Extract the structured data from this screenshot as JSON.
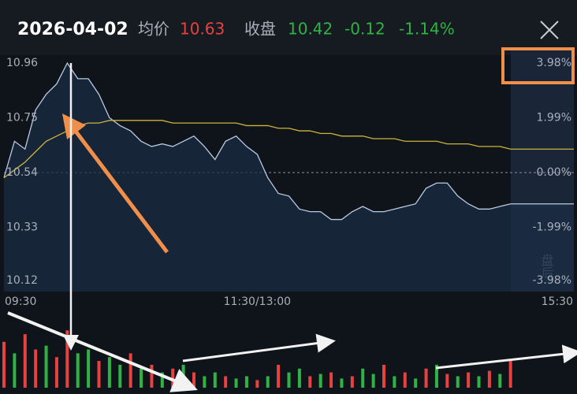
{
  "header": {
    "date": "2026-04-02",
    "avg_label": "均价",
    "avg_value": "10.63",
    "close_label": "收盘",
    "close_value": "10.42",
    "change": "-0.12",
    "change_pct": "-1.14%",
    "after_hours": "盘后"
  },
  "chart_data": [
    {
      "type": "line",
      "x": [
        0,
        5,
        10,
        15,
        20,
        25,
        30,
        35,
        40,
        45,
        50,
        55,
        60,
        65,
        70,
        75,
        80,
        85,
        90,
        95,
        100,
        105,
        110,
        115,
        120,
        125,
        130,
        135,
        140,
        145,
        150,
        155,
        160,
        165,
        170,
        175,
        180,
        185,
        190,
        195,
        200,
        205,
        210,
        215,
        220,
        225,
        230,
        235,
        240,
        270
      ],
      "xlim": [
        0,
        270
      ],
      "xticks": [
        {
          "value": 0,
          "label": "09:30"
        },
        {
          "value": 120,
          "label": "11:30/13:00"
        },
        {
          "value": 270,
          "label": "15:30"
        }
      ],
      "ylim": [
        10.12,
        10.96
      ],
      "yticks": [
        10.96,
        10.75,
        10.54,
        10.33,
        10.12
      ],
      "y2lim": [
        -3.98,
        3.98
      ],
      "y2ticks": [
        {
          "value": 3.98,
          "label": "3.98%"
        },
        {
          "value": 1.99,
          "label": "1.99%"
        },
        {
          "value": 0,
          "label": "0.00%"
        },
        {
          "value": -1.99,
          "label": "-1.99%"
        },
        {
          "value": -3.98,
          "label": "-3.98%"
        }
      ],
      "ref_line": 10.54,
      "series": [
        {
          "name": "price",
          "color": "#b9cae3",
          "values": [
            10.52,
            10.66,
            10.63,
            10.78,
            10.84,
            10.88,
            10.96,
            10.9,
            10.9,
            10.84,
            10.75,
            10.72,
            10.7,
            10.66,
            10.64,
            10.65,
            10.64,
            10.66,
            10.68,
            10.64,
            10.59,
            10.66,
            10.68,
            10.64,
            10.61,
            10.52,
            10.46,
            10.45,
            10.4,
            10.39,
            10.39,
            10.36,
            10.36,
            10.39,
            10.41,
            10.39,
            10.39,
            10.4,
            10.41,
            10.42,
            10.48,
            10.5,
            10.5,
            10.45,
            10.42,
            10.4,
            10.4,
            10.41,
            10.42,
            10.42
          ]
        },
        {
          "name": "average",
          "color": "#cdb43a",
          "values": [
            10.52,
            10.55,
            10.58,
            10.62,
            10.66,
            10.68,
            10.7,
            10.72,
            10.73,
            10.73,
            10.74,
            10.74,
            10.74,
            10.74,
            10.74,
            10.74,
            10.73,
            10.73,
            10.73,
            10.73,
            10.73,
            10.73,
            10.73,
            10.72,
            10.72,
            10.72,
            10.71,
            10.71,
            10.7,
            10.7,
            10.69,
            10.69,
            10.68,
            10.68,
            10.68,
            10.67,
            10.67,
            10.67,
            10.66,
            10.66,
            10.66,
            10.66,
            10.65,
            10.65,
            10.65,
            10.64,
            10.64,
            10.64,
            10.63,
            10.63
          ]
        }
      ]
    },
    {
      "type": "bar",
      "x": [
        0,
        5,
        10,
        15,
        20,
        25,
        30,
        35,
        40,
        45,
        50,
        55,
        60,
        65,
        70,
        75,
        80,
        85,
        90,
        95,
        100,
        105,
        110,
        115,
        120,
        125,
        130,
        135,
        140,
        145,
        150,
        155,
        160,
        165,
        170,
        175,
        180,
        185,
        190,
        195,
        200,
        205,
        210,
        215,
        220,
        225,
        230,
        235,
        240
      ],
      "xlim": [
        0,
        270
      ],
      "ylim": [
        0,
        100
      ],
      "values": [
        60,
        45,
        70,
        50,
        55,
        40,
        75,
        45,
        50,
        35,
        40,
        30,
        45,
        25,
        30,
        20,
        25,
        30,
        20,
        15,
        20,
        15,
        12,
        15,
        10,
        15,
        30,
        20,
        25,
        15,
        18,
        20,
        12,
        15,
        25,
        18,
        30,
        15,
        20,
        12,
        25,
        30,
        18,
        15,
        20,
        15,
        22,
        18,
        35
      ],
      "colors": [
        "#e8413f",
        "#2fb344",
        "#e8413f",
        "#e8413f",
        "#2fb344",
        "#e8413f",
        "#e8413f",
        "#2fb344",
        "#2fb344",
        "#e8413f",
        "#2fb344",
        "#2fb344",
        "#e8413f",
        "#2fb344",
        "#e8413f",
        "#2fb344",
        "#e8413f",
        "#2fb344",
        "#e8413f",
        "#2fb344",
        "#2fb344",
        "#e8413f",
        "#2fb344",
        "#2fb344",
        "#e8413f",
        "#2fb344",
        "#e8413f",
        "#2fb344",
        "#2fb344",
        "#e8413f",
        "#2fb344",
        "#e8413f",
        "#2fb344",
        "#e8413f",
        "#2fb344",
        "#2fb344",
        "#e8413f",
        "#2fb344",
        "#e8413f",
        "#2fb344",
        "#e8413f",
        "#2fb344",
        "#e8413f",
        "#2fb344",
        "#e8413f",
        "#2fb344",
        "#e8413f",
        "#2fb344",
        "#e8413f"
      ]
    }
  ]
}
